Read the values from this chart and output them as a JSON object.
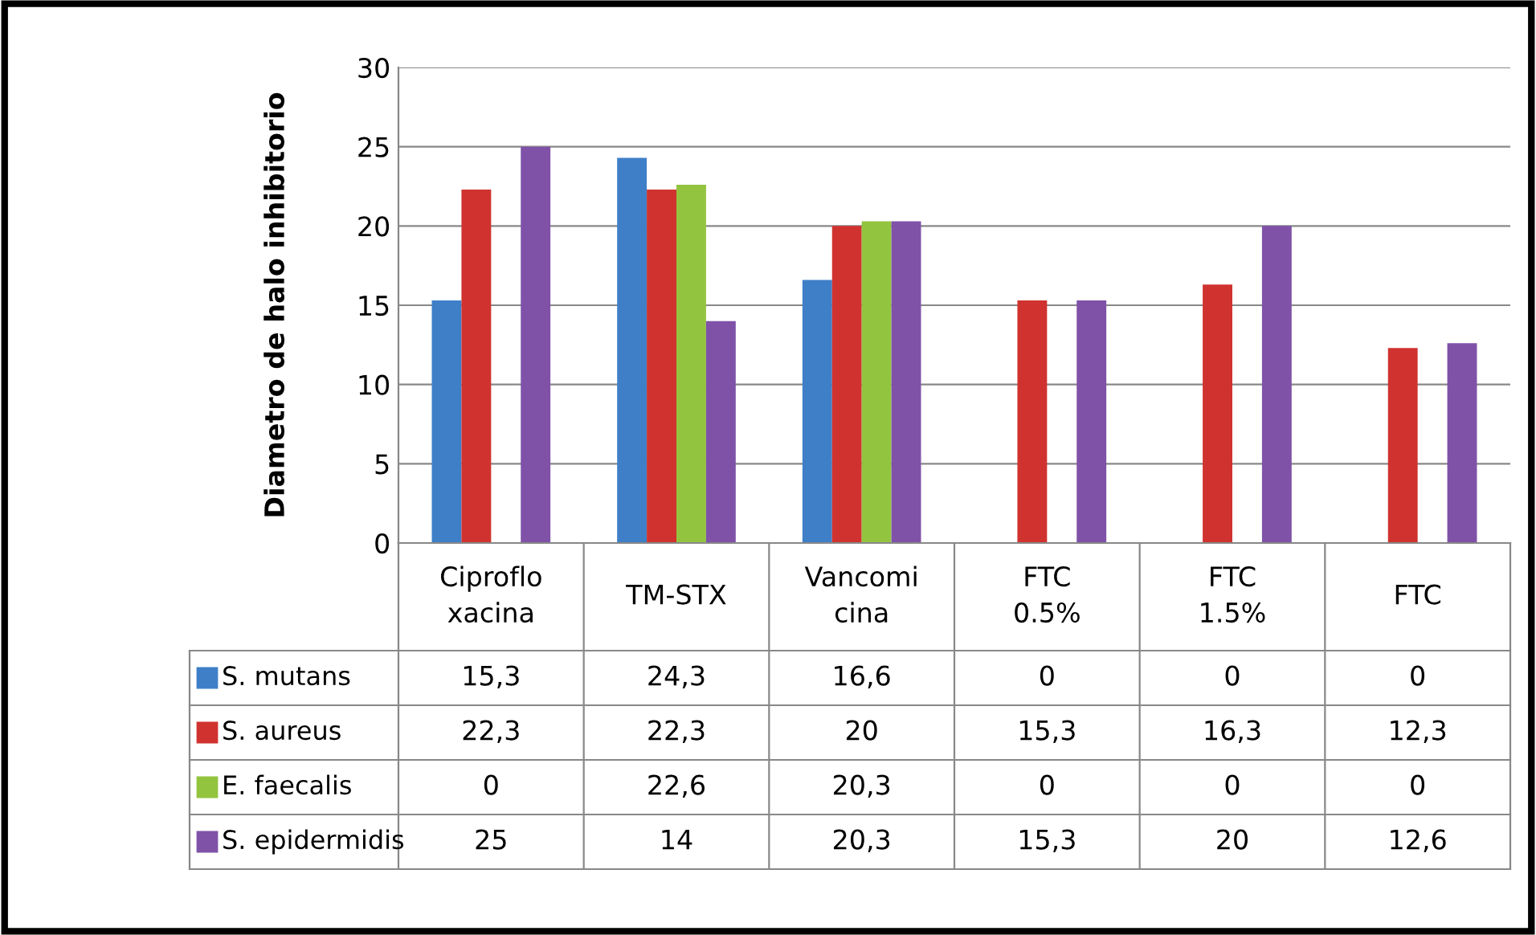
{
  "chart_data": {
    "type": "bar",
    "ylabel": "Diametro de halo inhibitorio",
    "categories": [
      "Ciproflo\nxacina",
      "TM-STX",
      "Vancomi\ncina",
      "FTC\n0.5%",
      "FTC\n1.5%",
      "FTC"
    ],
    "series": [
      {
        "name": "S. mutans",
        "color": "#3f7fc8",
        "values": [
          15.3,
          24.3,
          16.6,
          0,
          0,
          0
        ],
        "value_labels": [
          "15,3",
          "24,3",
          "16,6",
          "0",
          "0",
          "0"
        ]
      },
      {
        "name": "S. aureus",
        "color": "#d0332f",
        "values": [
          22.3,
          22.3,
          20,
          15.3,
          16.3,
          12.3
        ],
        "value_labels": [
          "22,3",
          "22,3",
          "20",
          "15,3",
          "16,3",
          "12,3"
        ]
      },
      {
        "name": "E. faecalis",
        "color": "#93c43f",
        "values": [
          0,
          22.6,
          20.3,
          0,
          0,
          0
        ],
        "value_labels": [
          "0",
          "22,6",
          "20,3",
          "0",
          "0",
          "0"
        ]
      },
      {
        "name": "S. epidermidis",
        "color": "#7f52a8",
        "values": [
          25,
          14,
          20.3,
          15.3,
          20,
          12.6
        ],
        "value_labels": [
          "25",
          "14",
          "20,3",
          "15,3",
          "20",
          "12,6"
        ]
      }
    ],
    "legend": "bottom",
    "ylim": [
      0,
      30
    ],
    "yticks": [
      0,
      5,
      10,
      15,
      20,
      25,
      30
    ],
    "grid": "y"
  }
}
